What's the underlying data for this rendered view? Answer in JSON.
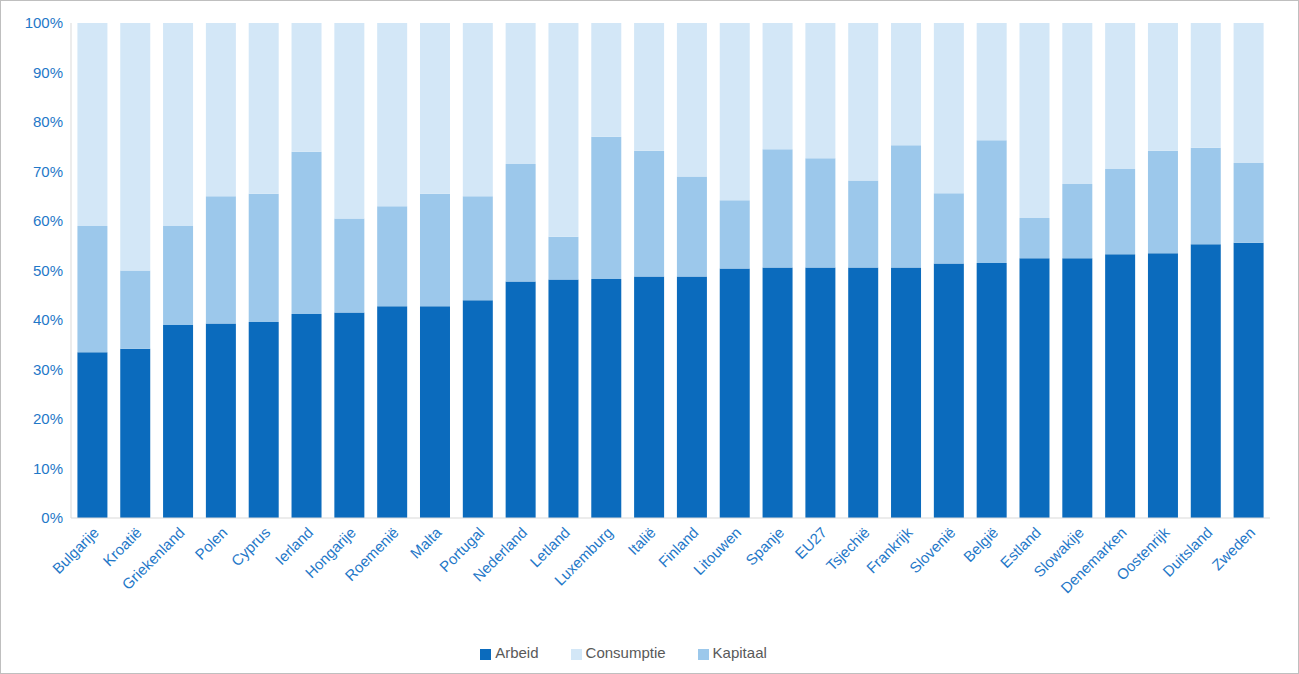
{
  "chart_data": {
    "type": "bar",
    "stacked": true,
    "grid": false,
    "legend": "bottom",
    "categories": [
      "Bulgarije",
      "Kroatië",
      "Griekenland",
      "Polen",
      "Cyprus",
      "Ierland",
      "Hongarije",
      "Roemenië",
      "Malta",
      "Portugal",
      "Nederland",
      "Letland",
      "Luxemburg",
      "Italië",
      "Finland",
      "Litouwen",
      "Spanje",
      "EU27",
      "Tsjechië",
      "Frankrijk",
      "Slovenië",
      "België",
      "Estland",
      "Slowakije",
      "Denemarken",
      "Oostenrijk",
      "Duitsland",
      "Zweden"
    ],
    "series": [
      {
        "name": "Arbeid",
        "color": "#0b6bbd",
        "values": [
          33.5,
          34.2,
          39,
          39.3,
          39.6,
          41.2,
          41.5,
          42.8,
          42.8,
          44,
          47.8,
          48.2,
          48.3,
          48.8,
          48.8,
          50.4,
          50.6,
          50.6,
          50.6,
          50.6,
          51.4,
          51.5,
          52.5,
          52.5,
          53.3,
          53.5,
          55.3,
          55.6
        ]
      },
      {
        "name": "Kapitaal",
        "color": "#9cc8eb",
        "values": [
          25.5,
          15.8,
          20,
          25.7,
          25.9,
          32.8,
          19,
          20.2,
          22.7,
          21,
          23.7,
          8.6,
          28.7,
          25.4,
          20.2,
          13.8,
          23.9,
          22.1,
          17.6,
          24.7,
          14.2,
          24.8,
          8.1,
          15,
          17.2,
          20.7,
          19.5,
          16.1
        ]
      },
      {
        "name": "Consumptie",
        "color": "#d3e7f7",
        "values": [
          41,
          50,
          41,
          35,
          34.5,
          26,
          39.5,
          37,
          34.5,
          35,
          28.5,
          43.2,
          23,
          25.8,
          31,
          35.8,
          25.5,
          27.3,
          31.8,
          24.7,
          34.4,
          23.7,
          39.4,
          32.5,
          29.5,
          25.8,
          25.2,
          28.3
        ]
      }
    ],
    "ylim": [
      0,
      100
    ],
    "yticks": [
      {
        "value": 0,
        "label": "0%"
      },
      {
        "value": 10,
        "label": "10%"
      },
      {
        "value": 20,
        "label": "20%"
      },
      {
        "value": 30,
        "label": "30%"
      },
      {
        "value": 40,
        "label": "40%"
      },
      {
        "value": 50,
        "label": "50%"
      },
      {
        "value": 60,
        "label": "60%"
      },
      {
        "value": 70,
        "label": "70%"
      },
      {
        "value": 80,
        "label": "80%"
      },
      {
        "value": 90,
        "label": "90%"
      },
      {
        "value": 100,
        "label": "100%"
      }
    ]
  }
}
